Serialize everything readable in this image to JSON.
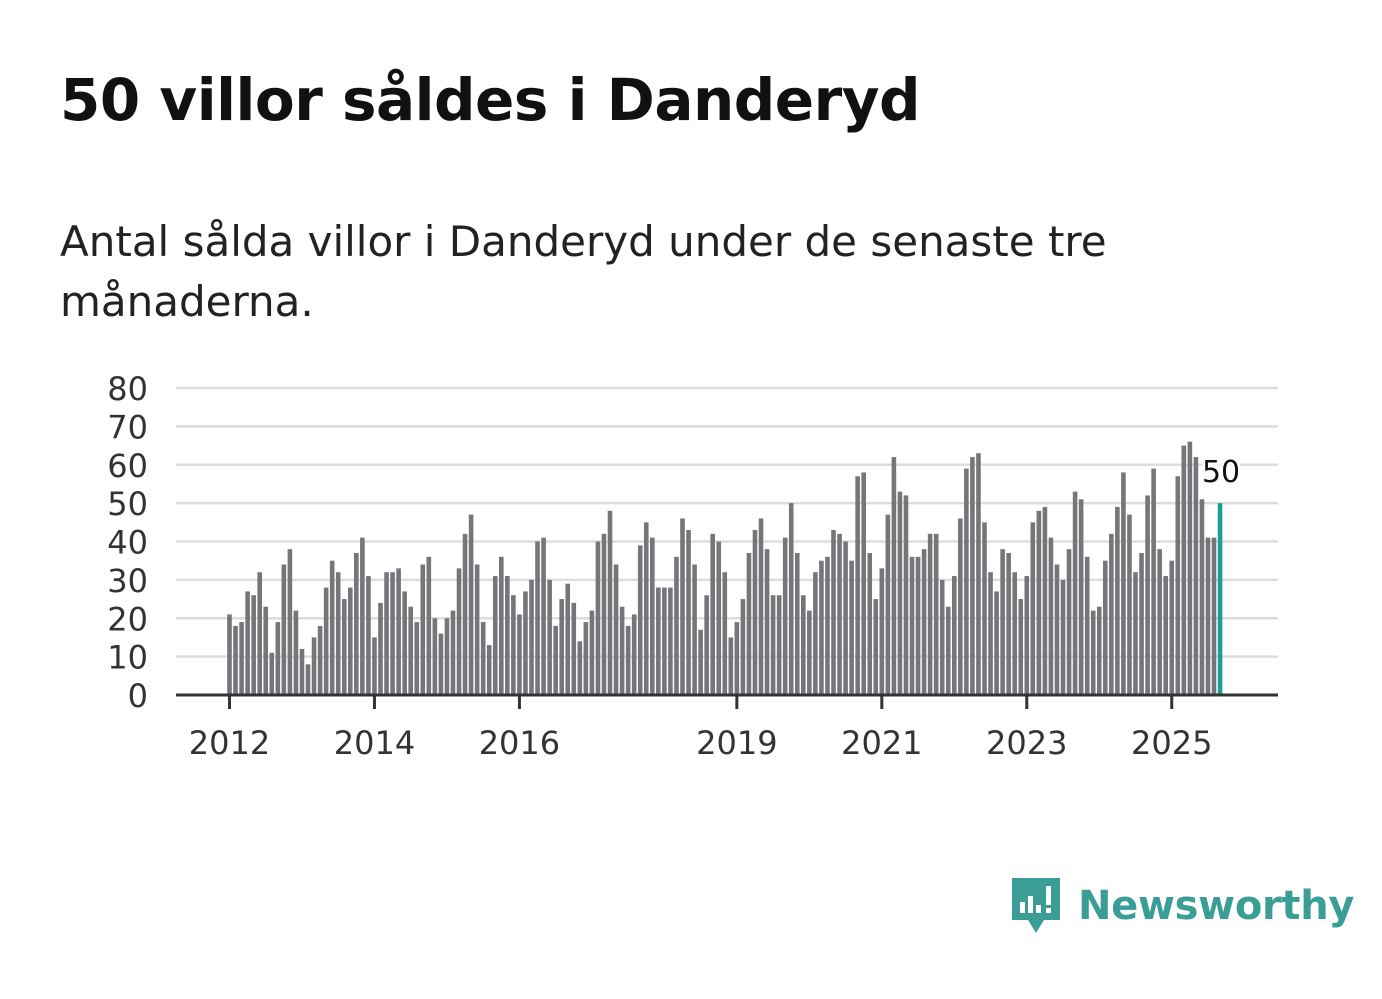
{
  "title": "50 villor såldes i Danderyd",
  "subtitle": "Antal sålda villor i Danderyd under de senaste tre månaderna.",
  "brand": {
    "name": "Newsworthy",
    "icon": "newsworthy-logo-icon"
  },
  "colors": {
    "bar": "#76757a",
    "highlight": "#1a9e96",
    "grid": "#dddddd",
    "axis": "#333333",
    "brand": "#3a9e96"
  },
  "chart_data": {
    "type": "bar",
    "title": "",
    "xlabel": "",
    "ylabel": "",
    "ylim": [
      0,
      80
    ],
    "yticks": [
      0,
      10,
      20,
      30,
      40,
      50,
      60,
      70,
      80
    ],
    "xticks": [
      "2012",
      "2014",
      "2016",
      "2019",
      "2021",
      "2023",
      "2025"
    ],
    "grid": true,
    "highlight_label": "50",
    "series": [
      {
        "name": "2012",
        "values": [
          21,
          18,
          19,
          27,
          26,
          32,
          23,
          11,
          19,
          34,
          38,
          22
        ]
      },
      {
        "name": "2013",
        "values": [
          12,
          8,
          15,
          18,
          28,
          35,
          32,
          25,
          28,
          37,
          41,
          31
        ]
      },
      {
        "name": "2014",
        "values": [
          15,
          24,
          32,
          32,
          33,
          27,
          23,
          19,
          34,
          36,
          20,
          16
        ]
      },
      {
        "name": "2015",
        "values": [
          20,
          22,
          33,
          42,
          47,
          34,
          19,
          13,
          31,
          36,
          31,
          26
        ]
      },
      {
        "name": "2016",
        "values": [
          21,
          27,
          30,
          40,
          41,
          30,
          18,
          25,
          29,
          24,
          14,
          19
        ]
      },
      {
        "name": "2017",
        "values": [
          22,
          40,
          42,
          48,
          34,
          23,
          18,
          21,
          39,
          45,
          41,
          28
        ]
      },
      {
        "name": "2018",
        "values": [
          28,
          28,
          36,
          46,
          43,
          34,
          17,
          26,
          42,
          40,
          32,
          15
        ]
      },
      {
        "name": "2019",
        "values": [
          19,
          25,
          37,
          43,
          46,
          38,
          26,
          26,
          41,
          50,
          37,
          26
        ]
      },
      {
        "name": "2020",
        "values": [
          22,
          32,
          35,
          36,
          43,
          42,
          40,
          35,
          57,
          58,
          37,
          25
        ]
      },
      {
        "name": "2021",
        "values": [
          33,
          47,
          62,
          53,
          52,
          36,
          36,
          38,
          42,
          42,
          30,
          23
        ]
      },
      {
        "name": "2022",
        "values": [
          31,
          46,
          59,
          62,
          63,
          45,
          32,
          27,
          38,
          37,
          32,
          25
        ]
      },
      {
        "name": "2023",
        "values": [
          31,
          45,
          48,
          49,
          41,
          34,
          30,
          38,
          53,
          51,
          36,
          22
        ]
      },
      {
        "name": "2024",
        "values": [
          23,
          35,
          42,
          49,
          58,
          47,
          32,
          37,
          52,
          59,
          38,
          31
        ]
      },
      {
        "name": "2025",
        "values": [
          35,
          57,
          65,
          66,
          62,
          51,
          41,
          41,
          50
        ]
      }
    ]
  }
}
